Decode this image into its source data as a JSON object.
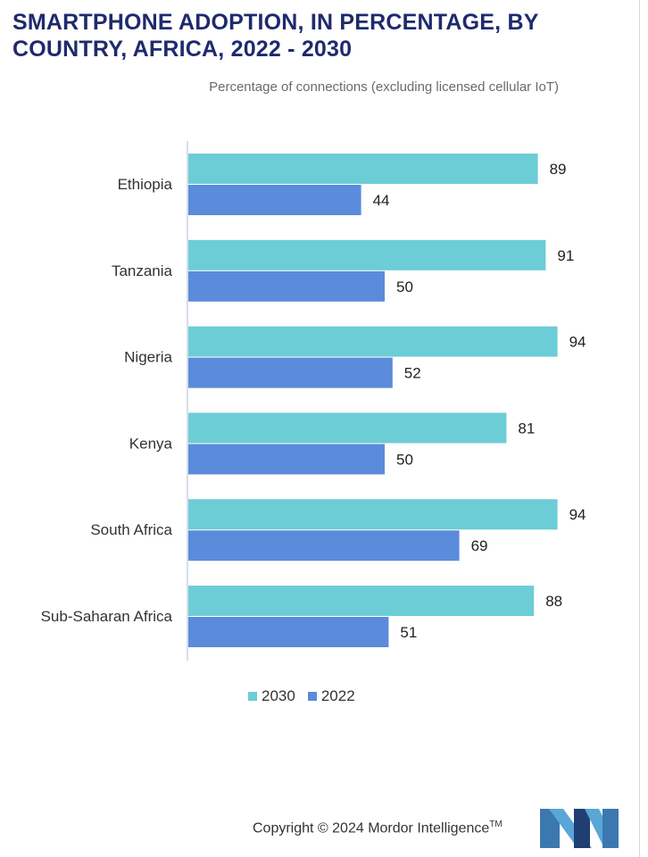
{
  "header": {
    "title": "SMARTPHONE ADOPTION, IN PERCENTAGE, BY COUNTRY, AFRICA, 2022 - 2030",
    "subtitle": "Percentage of connections (excluding licensed cellular IoT)"
  },
  "chart_data": {
    "type": "bar",
    "orientation": "horizontal",
    "categories": [
      "Ethiopia",
      "Tanzania",
      "Nigeria",
      "Kenya",
      "South Africa",
      "Sub-Saharan Africa"
    ],
    "series": [
      {
        "name": "2030",
        "color": "#6ccdd6",
        "values": [
          89,
          91,
          94,
          81,
          94,
          88
        ]
      },
      {
        "name": "2022",
        "color": "#5b8bdb",
        "values": [
          44,
          50,
          52,
          50,
          69,
          51
        ]
      }
    ],
    "xlim": [
      0,
      100
    ],
    "legend": "bottom",
    "data_labels": true
  },
  "footer": {
    "copyright": "Copyright © 2024 Mordor Intelligence",
    "trademark": "TM"
  },
  "logo": {
    "icon": "mordor-intelligence-logo-icon",
    "colors": [
      "#3c78b0",
      "#1f3f74",
      "#5aa6d6"
    ]
  }
}
